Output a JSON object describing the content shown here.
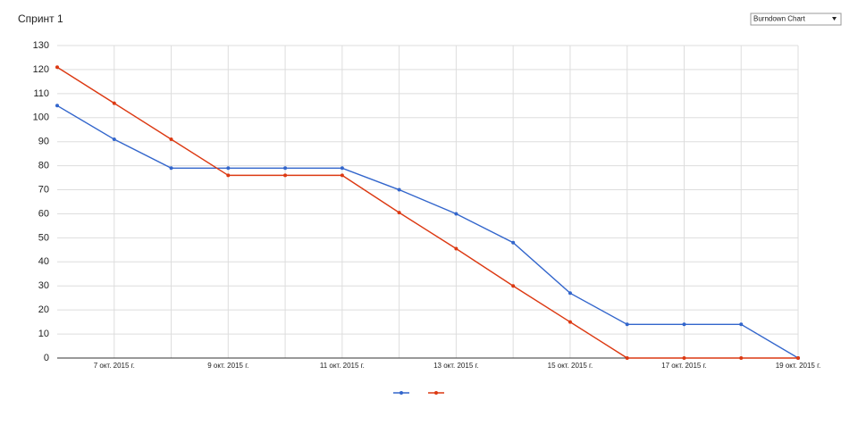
{
  "header": {
    "title": "Спринт 1"
  },
  "select": {
    "value": "Burndown Chart"
  },
  "chart_data": {
    "type": "line",
    "categories": [
      null,
      "7 окт. 2015 г.",
      null,
      "9 окт. 2015 г.",
      null,
      "11 окт. 2015 г.",
      null,
      "13 окт. 2015 г.",
      null,
      "15 окт. 2015 г.",
      null,
      "17 окт. 2015 г.",
      null,
      "19 окт. 2015 г."
    ],
    "series": [
      {
        "color": "#3366cc",
        "values": [
          105,
          91,
          79,
          79,
          79,
          79,
          70,
          60,
          48,
          27,
          14,
          14,
          14,
          0
        ]
      },
      {
        "color": "#dc3912",
        "values": [
          121,
          106,
          91,
          76,
          76,
          76,
          60.5,
          45.5,
          30,
          15,
          0,
          0,
          0,
          0
        ]
      }
    ],
    "ylim": [
      0,
      130
    ],
    "yticks": [
      0,
      10,
      20,
      30,
      40,
      50,
      60,
      70,
      80,
      90,
      100,
      110,
      120,
      130
    ],
    "grid": true,
    "legend": "bottom"
  }
}
